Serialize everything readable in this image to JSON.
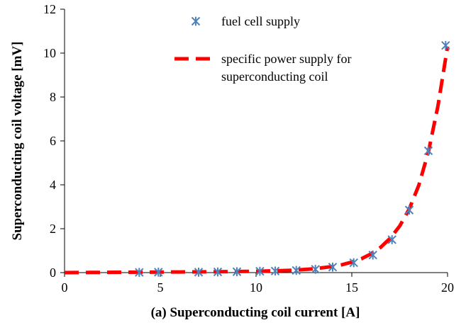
{
  "chart_data": {
    "type": "scatter",
    "xlabel": "(a) Superconducting  coil current  [A]",
    "ylabel": "Superconducting  coil voltage [mV]",
    "xlim": [
      0,
      20
    ],
    "ylim": [
      0,
      12
    ],
    "xticks": [
      "0",
      "5",
      "10",
      "15",
      "20"
    ],
    "yticks": [
      "0",
      "2",
      "4",
      "6",
      "8",
      "10",
      "12"
    ],
    "grid": false,
    "legend_position": "top-center",
    "series": [
      {
        "name": "fuel cell supply",
        "kind": "markers",
        "marker": "asterisk",
        "color": "#4f81bd",
        "x": [
          3.9,
          4.9,
          7.0,
          8.0,
          9.0,
          10.2,
          11.0,
          12.1,
          13.1,
          14.0,
          15.1,
          16.1,
          17.1,
          18.0,
          19.0,
          19.9
        ],
        "y": [
          0.01,
          0.02,
          0.02,
          0.03,
          0.04,
          0.06,
          0.07,
          0.1,
          0.15,
          0.25,
          0.45,
          0.8,
          1.5,
          2.85,
          5.55,
          10.35
        ]
      },
      {
        "name_lines": [
          "specific power supply for",
          "superconducting coil"
        ],
        "kind": "dashed-line",
        "color": "#ff0000",
        "x": [
          0,
          2,
          4,
          6,
          8,
          10,
          11,
          12,
          13,
          14,
          14.5,
          15,
          15.5,
          16,
          16.5,
          17,
          17.5,
          18,
          18.5,
          19,
          19.5,
          20
        ],
        "y": [
          0,
          0.01,
          0.02,
          0.03,
          0.04,
          0.06,
          0.08,
          0.11,
          0.17,
          0.28,
          0.36,
          0.48,
          0.63,
          0.85,
          1.15,
          1.56,
          2.12,
          2.9,
          3.98,
          5.5,
          7.6,
          10.3
        ]
      }
    ]
  }
}
